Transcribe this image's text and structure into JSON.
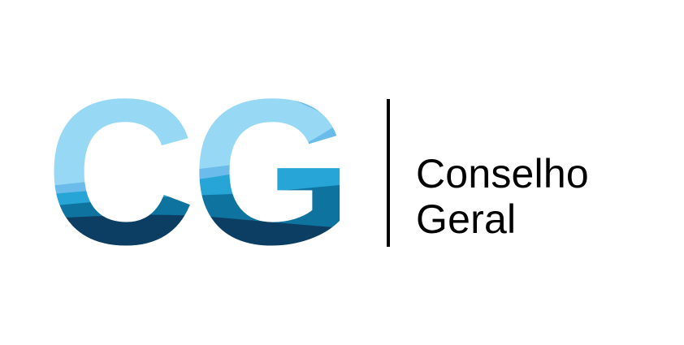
{
  "logo": {
    "monogram_text": "CG",
    "title_line1": "Conselho",
    "title_line2": "Geral",
    "colors": {
      "band1": "#97d9f5",
      "band2": "#6bbcea",
      "band3": "#26a5d6",
      "band4": "#0e739e",
      "band5": "#0c3e63",
      "text": "#000000",
      "divider": "#000000",
      "background": "#ffffff"
    }
  }
}
